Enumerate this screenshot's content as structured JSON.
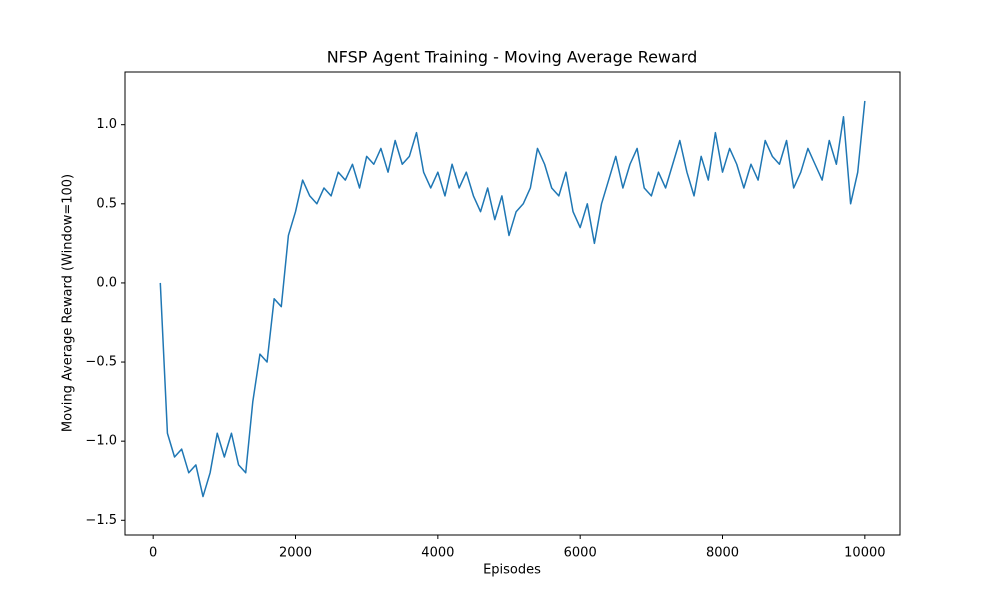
{
  "chart_data": {
    "type": "line",
    "title": "NFSP Agent Training - Moving Average Reward",
    "xlabel": "Episodes",
    "ylabel": "Moving Average Reward (Window=100)",
    "color": "#1f77b4",
    "x": [
      100,
      200,
      300,
      400,
      500,
      600,
      700,
      800,
      900,
      1000,
      1100,
      1200,
      1300,
      1400,
      1500,
      1600,
      1700,
      1800,
      1900,
      2000,
      2100,
      2200,
      2300,
      2400,
      2500,
      2600,
      2700,
      2800,
      2900,
      3000,
      3100,
      3200,
      3300,
      3400,
      3500,
      3600,
      3700,
      3800,
      3900,
      4000,
      4100,
      4200,
      4300,
      4400,
      4500,
      4600,
      4700,
      4800,
      4900,
      5000,
      5100,
      5200,
      5300,
      5400,
      5500,
      5600,
      5700,
      5800,
      5900,
      6000,
      6100,
      6200,
      6300,
      6400,
      6500,
      6600,
      6700,
      6800,
      6900,
      7000,
      7100,
      7200,
      7300,
      7400,
      7500,
      7600,
      7700,
      7800,
      7900,
      8000,
      8100,
      8200,
      8300,
      8400,
      8500,
      8600,
      8700,
      8800,
      8900,
      9000,
      9100,
      9200,
      9300,
      9400,
      9500,
      9600,
      9700,
      9800,
      9900,
      10000
    ],
    "values": [
      0.0,
      -0.95,
      -1.1,
      -1.05,
      -1.2,
      -1.15,
      -1.35,
      -1.2,
      -0.95,
      -1.1,
      -0.95,
      -1.15,
      -1.2,
      -0.75,
      -0.45,
      -0.5,
      -0.1,
      -0.15,
      0.3,
      0.45,
      0.65,
      0.55,
      0.5,
      0.6,
      0.55,
      0.7,
      0.65,
      0.75,
      0.6,
      0.8,
      0.75,
      0.85,
      0.7,
      0.9,
      0.75,
      0.8,
      0.95,
      0.7,
      0.6,
      0.7,
      0.55,
      0.75,
      0.6,
      0.7,
      0.55,
      0.45,
      0.6,
      0.4,
      0.55,
      0.3,
      0.45,
      0.5,
      0.6,
      0.85,
      0.75,
      0.6,
      0.55,
      0.7,
      0.45,
      0.35,
      0.5,
      0.25,
      0.5,
      0.65,
      0.8,
      0.6,
      0.75,
      0.85,
      0.6,
      0.55,
      0.7,
      0.6,
      0.75,
      0.9,
      0.7,
      0.55,
      0.8,
      0.65,
      0.95,
      0.7,
      0.85,
      0.75,
      0.6,
      0.75,
      0.65,
      0.9,
      0.8,
      0.75,
      0.9,
      0.6,
      0.7,
      0.85,
      0.75,
      0.65,
      0.9,
      0.75,
      1.05,
      0.5,
      0.7,
      1.15
    ],
    "xlim": [
      -396,
      10494
    ],
    "ylim": [
      -1.593,
      1.333
    ],
    "xticks": [
      0,
      2000,
      4000,
      6000,
      8000,
      10000
    ],
    "yticks": [
      {
        "value": -1.5,
        "label": "−1.5"
      },
      {
        "value": -1.0,
        "label": "−1.0"
      },
      {
        "value": -0.5,
        "label": "−0.5"
      },
      {
        "value": 0,
        "label": "0.0"
      },
      0.5,
      {
        "value": 1.0,
        "label": "1.0"
      }
    ]
  }
}
